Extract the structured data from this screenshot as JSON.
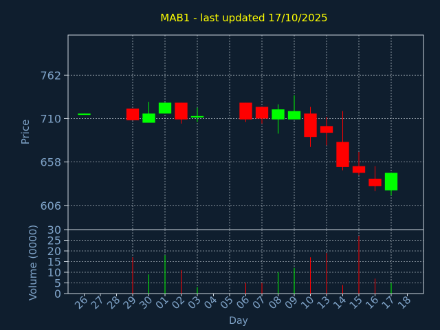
{
  "colors": {
    "background": "#0f1e2e",
    "plot_bg": "#0f1e2e",
    "grid": "#cfd8e0",
    "frame": "#cfd8e0",
    "title": "#ffff00",
    "axis_text": "#7fa3c8",
    "up": "#00ff00",
    "down": "#ff0000"
  },
  "chart_data": {
    "type": "candlestick",
    "title": "MAB1 - last updated 17/10/2025",
    "xlabel": "Day",
    "ylabel_price": "Price",
    "ylabel_volume": "Volume (0000)",
    "x_ticks": [
      "26",
      "27",
      "28",
      "29",
      "30",
      "01",
      "02",
      "03",
      "04",
      "05",
      "06",
      "07",
      "08",
      "09",
      "10",
      "13",
      "14",
      "15",
      "16",
      "17",
      "18"
    ],
    "price_ticks": [
      "762",
      "710",
      "658",
      "606"
    ],
    "price_tick_values": [
      762,
      710,
      658,
      606
    ],
    "price_range": [
      577,
      810
    ],
    "volume_ticks": [
      "0",
      "5",
      "10",
      "15",
      "20",
      "25",
      "30"
    ],
    "volume_range": [
      0,
      30
    ],
    "grid": true,
    "candles": [
      {
        "day": "26",
        "open": 715,
        "close": 716,
        "high": 716,
        "low": 715,
        "volume": 0
      },
      {
        "day": "29",
        "open": 722,
        "close": 708,
        "high": 722,
        "low": 708,
        "volume": 17
      },
      {
        "day": "30",
        "open": 705,
        "close": 716,
        "high": 730,
        "low": 705,
        "volume": 9
      },
      {
        "day": "01",
        "open": 716,
        "close": 729,
        "high": 729,
        "low": 716,
        "volume": 18
      },
      {
        "day": "02",
        "open": 729,
        "close": 709,
        "high": 729,
        "low": 704,
        "volume": 11
      },
      {
        "day": "03",
        "open": 712,
        "close": 713,
        "high": 723,
        "low": 706,
        "volume": 3
      },
      {
        "day": "06",
        "open": 729,
        "close": 709,
        "high": 729,
        "low": 706,
        "volume": 5
      },
      {
        "day": "07",
        "open": 724,
        "close": 710,
        "high": 724,
        "low": 704,
        "volume": 5
      },
      {
        "day": "08",
        "open": 709,
        "close": 721,
        "high": 727,
        "low": 692,
        "volume": 10
      },
      {
        "day": "09",
        "open": 709,
        "close": 719,
        "high": 738,
        "low": 709,
        "volume": 12
      },
      {
        "day": "10",
        "open": 716,
        "close": 688,
        "high": 724,
        "low": 676,
        "volume": 17
      },
      {
        "day": "13",
        "open": 701,
        "close": 693,
        "high": 712,
        "low": 678,
        "volume": 19
      },
      {
        "day": "14",
        "open": 682,
        "close": 652,
        "high": 719,
        "low": 648,
        "volume": 4
      },
      {
        "day": "15",
        "open": 653,
        "close": 645,
        "high": 670,
        "low": 642,
        "volume": 27
      },
      {
        "day": "16",
        "open": 638,
        "close": 629,
        "high": 653,
        "low": 623,
        "volume": 7
      },
      {
        "day": "17",
        "open": 624,
        "close": 645,
        "high": 645,
        "low": 618,
        "volume": 5
      }
    ]
  }
}
